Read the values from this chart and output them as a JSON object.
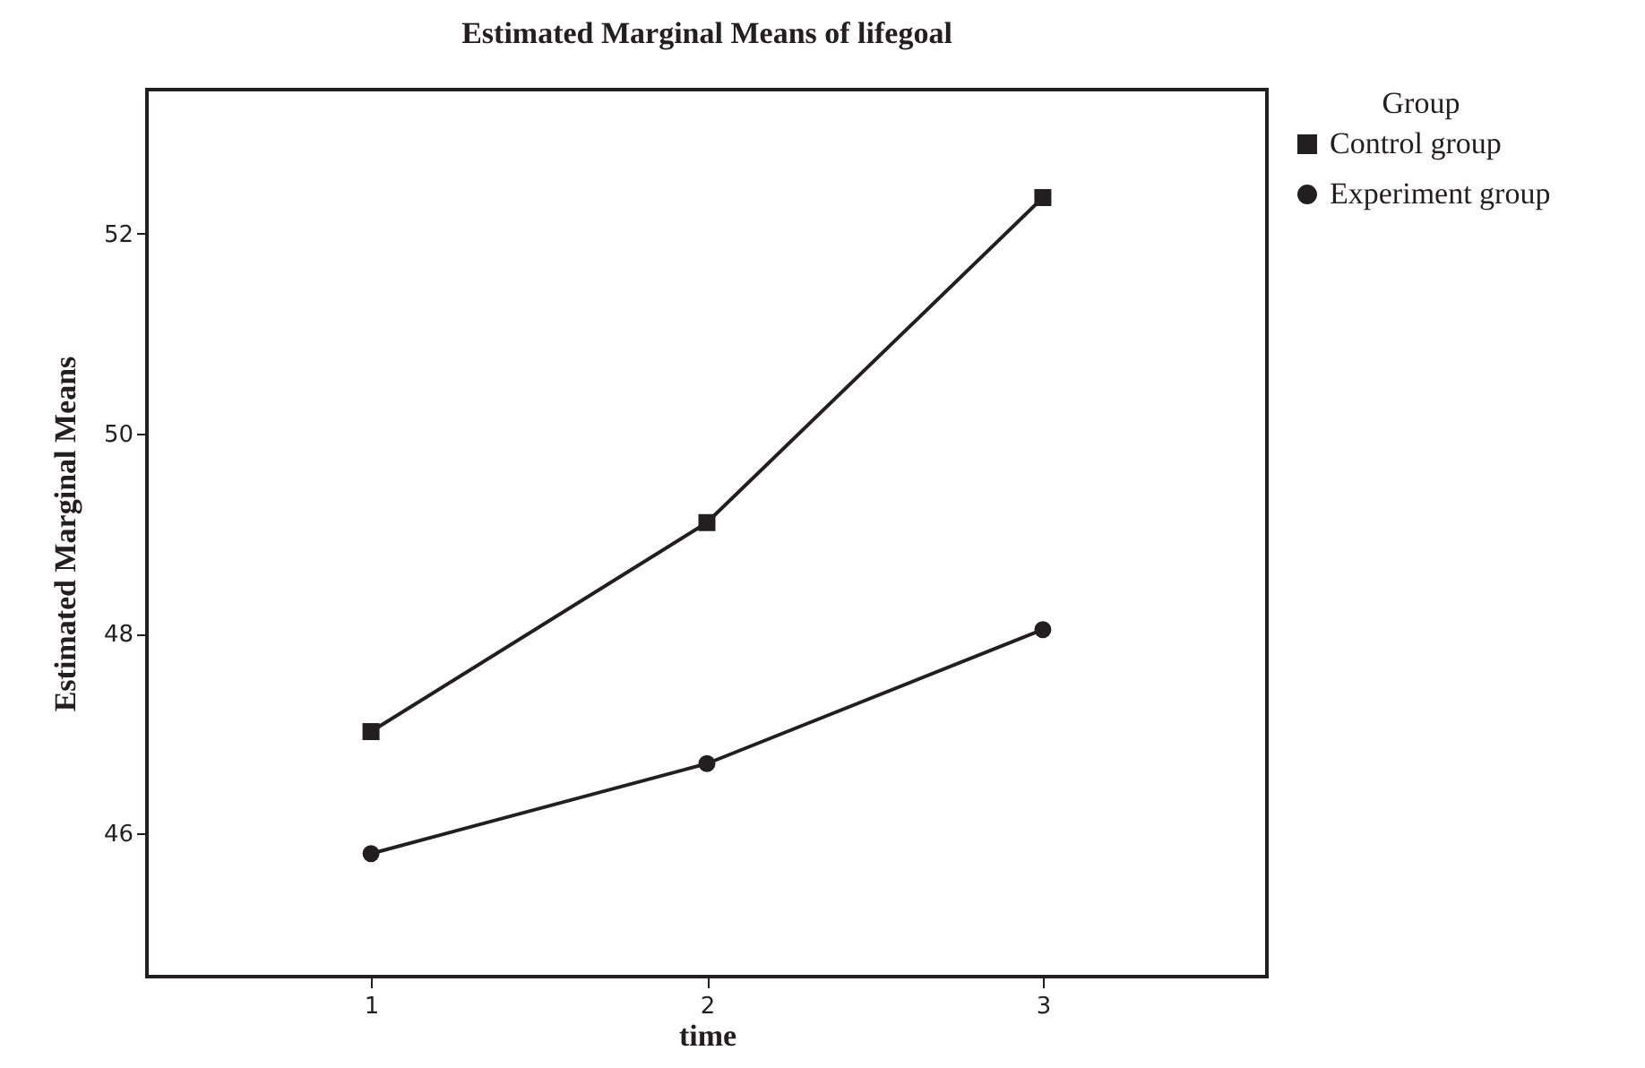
{
  "chart_data": {
    "type": "line",
    "title": "Estimated Marginal Means of lifegoal",
    "xlabel": "time",
    "ylabel": "Estimated Marginal Means",
    "legend_title": "Group",
    "categories": [
      "1",
      "2",
      "3"
    ],
    "series": [
      {
        "name": "Control group",
        "color": "#231f20",
        "marker": "square",
        "values": [
          47.02,
          49.11,
          52.36
        ]
      },
      {
        "name": "Experiment group",
        "color": "#231f20",
        "marker": "circle",
        "values": [
          45.8,
          46.7,
          48.04
        ]
      }
    ],
    "ylim": [
      44.57,
      53.44
    ],
    "yticks": [
      46,
      48,
      50,
      52
    ],
    "grid": false,
    "legend": "top right",
    "line_style": "solid"
  }
}
